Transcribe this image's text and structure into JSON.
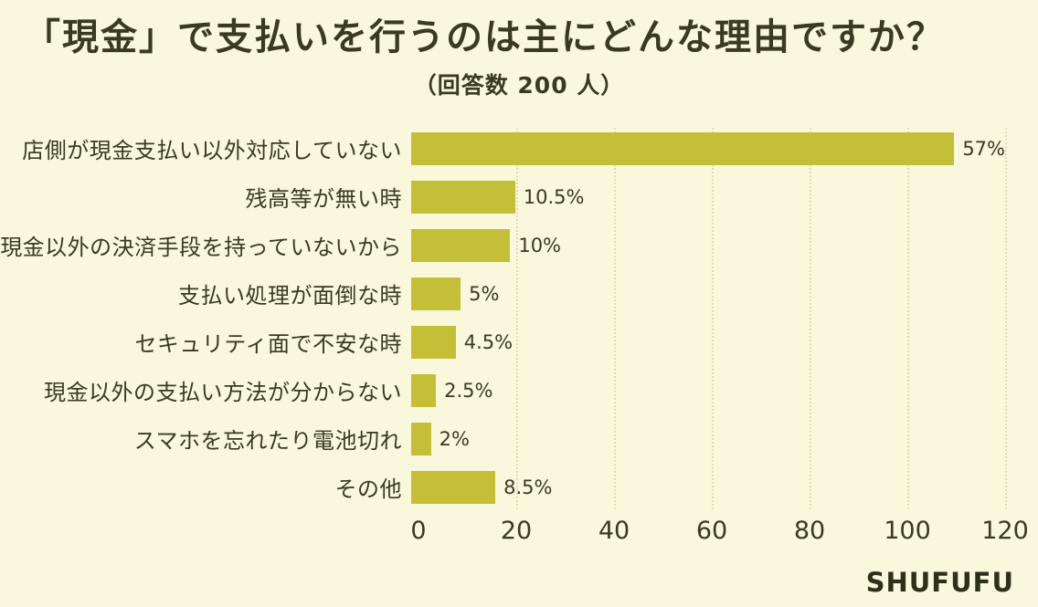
{
  "chart_data": {
    "type": "bar",
    "orientation": "horizontal",
    "title": "「現金」で支払いを行うのは主にどんな理由ですか？",
    "subtitle": "（回答数 200 人）",
    "categories": [
      "店側が現金支払い以外対応していない",
      "残高等が無い時",
      "現金以外の決済手段を持っていないから",
      "支払い処理が面倒な時",
      "セキュリティ面で不安な時",
      "現金以外の支払い方法が分からない",
      "スマホを忘れたり電池切れ",
      "その他"
    ],
    "values": [
      114,
      21,
      20,
      10,
      9,
      5,
      4,
      17
    ],
    "value_labels": [
      "57%",
      "10.5%",
      "10%",
      "5%",
      "4.5%",
      "2.5%",
      "2%",
      "8.5%"
    ],
    "respondents_total": 200,
    "xlim": [
      0,
      120
    ],
    "xticks": [
      0,
      20,
      40,
      60,
      80,
      100,
      120
    ],
    "xlabel": "",
    "ylabel": "",
    "legend_position": "none",
    "grid": "vertical-dotted",
    "bar_color": "#c3bf36",
    "grid_color": "#deddb9",
    "background_color": "#f9f8dc",
    "text_color": "#3a3a22"
  },
  "footer": {
    "brand": "SHUFUFU"
  }
}
